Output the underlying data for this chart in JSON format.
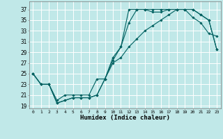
{
  "xlabel": "Humidex (Indice chaleur)",
  "bg_color": "#c0e8e8",
  "grid_color": "#ffffff",
  "line_color": "#006060",
  "xlim": [
    -0.5,
    23.5
  ],
  "ylim": [
    18.5,
    38.5
  ],
  "xticks": [
    0,
    1,
    2,
    3,
    4,
    5,
    6,
    7,
    8,
    9,
    10,
    11,
    12,
    13,
    14,
    15,
    16,
    17,
    18,
    19,
    20,
    21,
    22,
    23
  ],
  "yticks": [
    19,
    21,
    23,
    25,
    27,
    29,
    31,
    33,
    35,
    37
  ],
  "series1_x": [
    0,
    1,
    2,
    3,
    4,
    5,
    6,
    7,
    8,
    9,
    10,
    11,
    12,
    13,
    14,
    15,
    16,
    17,
    18,
    19,
    20,
    21,
    22,
    23
  ],
  "series1_y": [
    25,
    23,
    23,
    20,
    21,
    21,
    21,
    21,
    24,
    24,
    28,
    30,
    37,
    37,
    37,
    37,
    37,
    37,
    37,
    37,
    37,
    36,
    35,
    29.5
  ],
  "series2_x": [
    0,
    1,
    2,
    3,
    4,
    5,
    6,
    7,
    8,
    9,
    10,
    11,
    12,
    13,
    14,
    15,
    16,
    17,
    18,
    19,
    20,
    21,
    22,
    23
  ],
  "series2_y": [
    25,
    23,
    23,
    19.5,
    20,
    20.5,
    20.5,
    20.5,
    21,
    24,
    27.5,
    30,
    34.5,
    37,
    37,
    36.5,
    36.5,
    37,
    37,
    37,
    35.5,
    34.5,
    32.5,
    32
  ],
  "series3_x": [
    0,
    1,
    2,
    3,
    4,
    5,
    6,
    7,
    8,
    9,
    10,
    11,
    12,
    13,
    14,
    15,
    16,
    17,
    18,
    19,
    20,
    21,
    22,
    23
  ],
  "series3_y": [
    25,
    23,
    23,
    19.5,
    20,
    20.5,
    20.5,
    20.5,
    21,
    24,
    27,
    28,
    30,
    31.5,
    33,
    34,
    35,
    36,
    37,
    37,
    37,
    36,
    35,
    29.5
  ]
}
